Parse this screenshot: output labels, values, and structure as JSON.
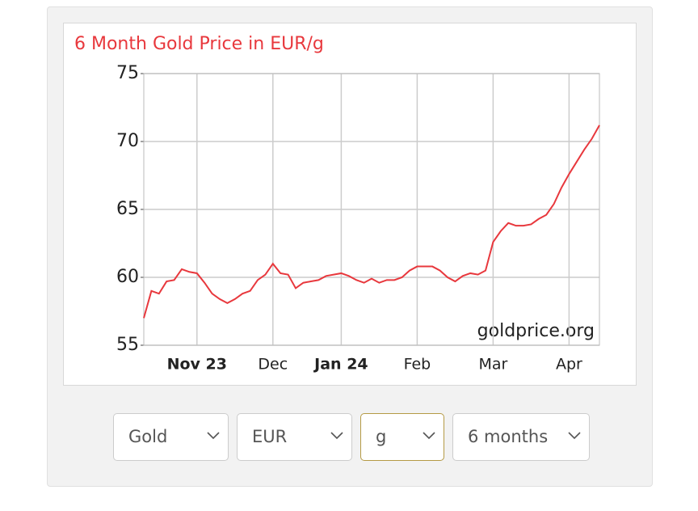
{
  "chart_data": {
    "type": "line",
    "title": "6 Month Gold Price in EUR/g",
    "watermark": "goldprice.org",
    "categories": [
      null,
      null,
      null,
      null,
      null,
      null,
      null,
      "Nov 23",
      null,
      null,
      null,
      null,
      null,
      null,
      null,
      null,
      null,
      "Dec",
      null,
      null,
      null,
      null,
      null,
      null,
      null,
      null,
      "Jan 24",
      null,
      null,
      null,
      null,
      null,
      null,
      null,
      null,
      null,
      "Feb",
      null,
      null,
      null,
      null,
      null,
      null,
      null,
      null,
      null,
      "Mar",
      null,
      null,
      null,
      null,
      null,
      null,
      null,
      null,
      null,
      "Apr",
      null,
      null,
      null,
      null
    ],
    "values": [
      57.0,
      59.0,
      58.8,
      59.7,
      59.8,
      60.6,
      60.4,
      60.3,
      59.6,
      58.8,
      58.4,
      58.1,
      58.4,
      58.8,
      59.0,
      59.8,
      60.2,
      61.0,
      60.3,
      60.2,
      59.2,
      59.6,
      59.7,
      59.8,
      60.1,
      60.2,
      60.3,
      60.1,
      59.8,
      59.6,
      59.9,
      59.6,
      59.8,
      59.8,
      60.0,
      60.5,
      60.8,
      60.8,
      60.8,
      60.5,
      60.0,
      59.7,
      60.1,
      60.3,
      60.2,
      60.5,
      62.6,
      63.4,
      64.0,
      63.8,
      63.8,
      63.9,
      64.3,
      64.6,
      65.4,
      66.6,
      67.6,
      68.5,
      69.4,
      70.2,
      71.2
    ],
    "color": "#e8383d",
    "ylim": [
      55,
      75
    ],
    "yticks": [
      55,
      60,
      65,
      70,
      75
    ],
    "grid": true
  },
  "controls": {
    "metal": "Gold",
    "currency": "EUR",
    "unit": "g",
    "period": "6 months"
  }
}
